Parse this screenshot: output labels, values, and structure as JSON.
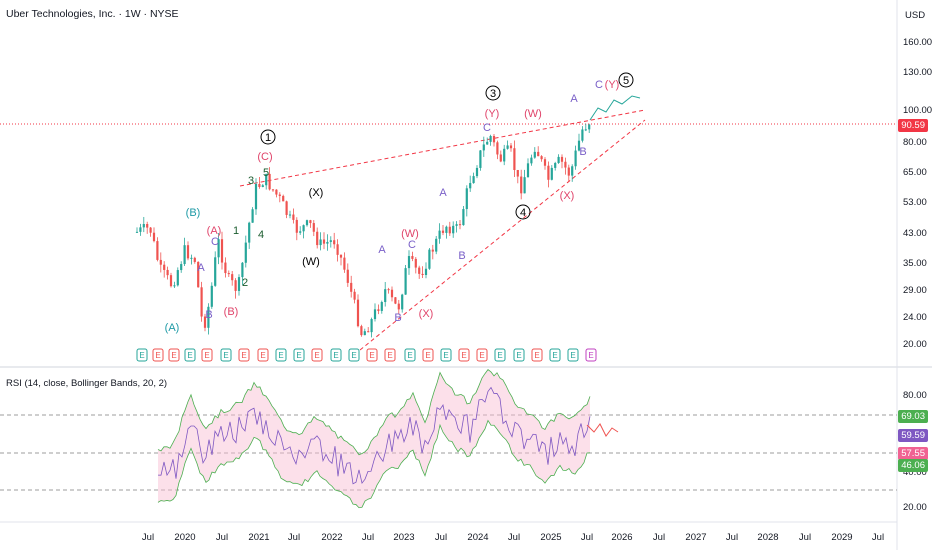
{
  "header": {
    "title": "Uber Technologies, Inc. · 1W · NYSE",
    "currency": "USD"
  },
  "price_pane": {
    "y_ticks": [
      "160.00",
      "130.00",
      "100.00",
      "80.00",
      "65.00",
      "53.00",
      "43.00",
      "35.00",
      "29.00",
      "24.00",
      "20.00"
    ],
    "last_price": "90.59",
    "last_price_color": "#f23645",
    "wave_labels": [
      {
        "text": "(A)",
        "color": "#1e9aa6"
      },
      {
        "text": "(B)",
        "color": "#1e9aa6"
      },
      {
        "text": "(A)",
        "color": "#e0446a"
      },
      {
        "text": "(B)",
        "color": "#e0446a"
      },
      {
        "text": "(C)",
        "color": "#e0446a"
      },
      {
        "text": "A",
        "color": "#7a60c8"
      },
      {
        "text": "B",
        "color": "#7a60c8"
      },
      {
        "text": "C",
        "color": "#7a60c8"
      },
      {
        "text": "1",
        "color": "#1a5c2e"
      },
      {
        "text": "2",
        "color": "#1a5c2e"
      },
      {
        "text": "3",
        "color": "#1a5c2e"
      },
      {
        "text": "4",
        "color": "#1a5c2e"
      },
      {
        "text": "5",
        "color": "#1a5c2e"
      },
      {
        "text": "1",
        "color": "#000000"
      },
      {
        "text": "(X)",
        "color": "#000000"
      },
      {
        "text": "(W)",
        "color": "#000000"
      },
      {
        "text": "A",
        "color": "#7a60c8"
      },
      {
        "text": "B",
        "color": "#7a60c8"
      },
      {
        "text": "C",
        "color": "#7a60c8"
      },
      {
        "text": "(W)",
        "color": "#e0446a"
      },
      {
        "text": "(X)",
        "color": "#e0446a"
      },
      {
        "text": "A",
        "color": "#7a60c8"
      },
      {
        "text": "B",
        "color": "#7a60c8"
      },
      {
        "text": "3",
        "color": "#000000"
      },
      {
        "text": "(Y)",
        "color": "#e0446a"
      },
      {
        "text": "C",
        "color": "#7a60c8"
      },
      {
        "text": "(W)",
        "color": "#e0446a"
      },
      {
        "text": "4",
        "color": "#000000"
      },
      {
        "text": "A",
        "color": "#7a60c8"
      },
      {
        "text": "B",
        "color": "#7a60c8"
      },
      {
        "text": "(X)",
        "color": "#e0446a"
      },
      {
        "text": "C",
        "color": "#7a60c8"
      },
      {
        "text": "(Y)",
        "color": "#e0446a"
      },
      {
        "text": "5",
        "color": "#000000"
      }
    ],
    "earnings_marker": "E"
  },
  "rsi_pane": {
    "title": "RSI (14, close, Bollinger Bands, 20, 2)",
    "y_ticks": [
      "80.00",
      "40.00",
      "20.00"
    ],
    "badges": [
      {
        "value": "69.03",
        "color": "#4caf50"
      },
      {
        "value": "59.59",
        "color": "#7e57c2"
      },
      {
        "value": "57.55",
        "color": "#f06292"
      },
      {
        "value": "46.06",
        "color": "#4caf50"
      }
    ]
  },
  "x_axis": {
    "labels": [
      "Jul",
      "2020",
      "Jul",
      "2021",
      "Jul",
      "2022",
      "Jul",
      "2023",
      "Jul",
      "2024",
      "Jul",
      "2025",
      "Jul",
      "2026",
      "Jul",
      "2027",
      "Jul",
      "2028",
      "Jul",
      "2029",
      "Jul"
    ]
  },
  "colors": {
    "up": "#26a69a",
    "down": "#ef5350",
    "rsi_line": "#7e57c2",
    "bb_band": "#4caf50",
    "bb_fill": "#f8bbd0",
    "trendline": "#f23645"
  }
}
